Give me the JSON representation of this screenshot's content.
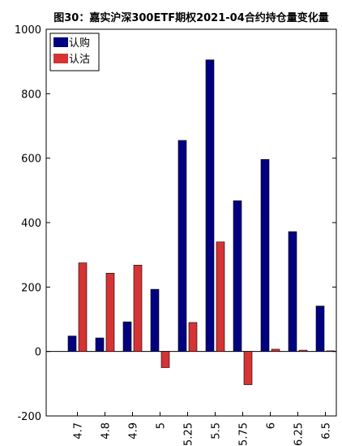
{
  "chart_data": {
    "type": "bar",
    "title": "图30：嘉实沪深300ETF期权2021-04合约持仓量变化量",
    "xlabel": "",
    "ylabel": "",
    "categories": [
      "4.7",
      "4.8",
      "4.9",
      "5",
      "5.25",
      "5.5",
      "5.75",
      "6",
      "6.25",
      "6.5"
    ],
    "series": [
      {
        "name": "认购",
        "color": "#000080",
        "values": [
          48,
          42,
          92,
          193,
          655,
          905,
          468,
          596,
          372,
          141
        ]
      },
      {
        "name": "认沽",
        "color": "#d63334",
        "values": [
          275,
          243,
          268,
          -50,
          90,
          340,
          -103,
          7,
          4,
          2
        ]
      }
    ],
    "ylim": [
      -200,
      1000
    ],
    "yticks": [
      -200,
      0,
      200,
      400,
      600,
      800,
      1000
    ],
    "grid": false,
    "legend": "top-left"
  }
}
